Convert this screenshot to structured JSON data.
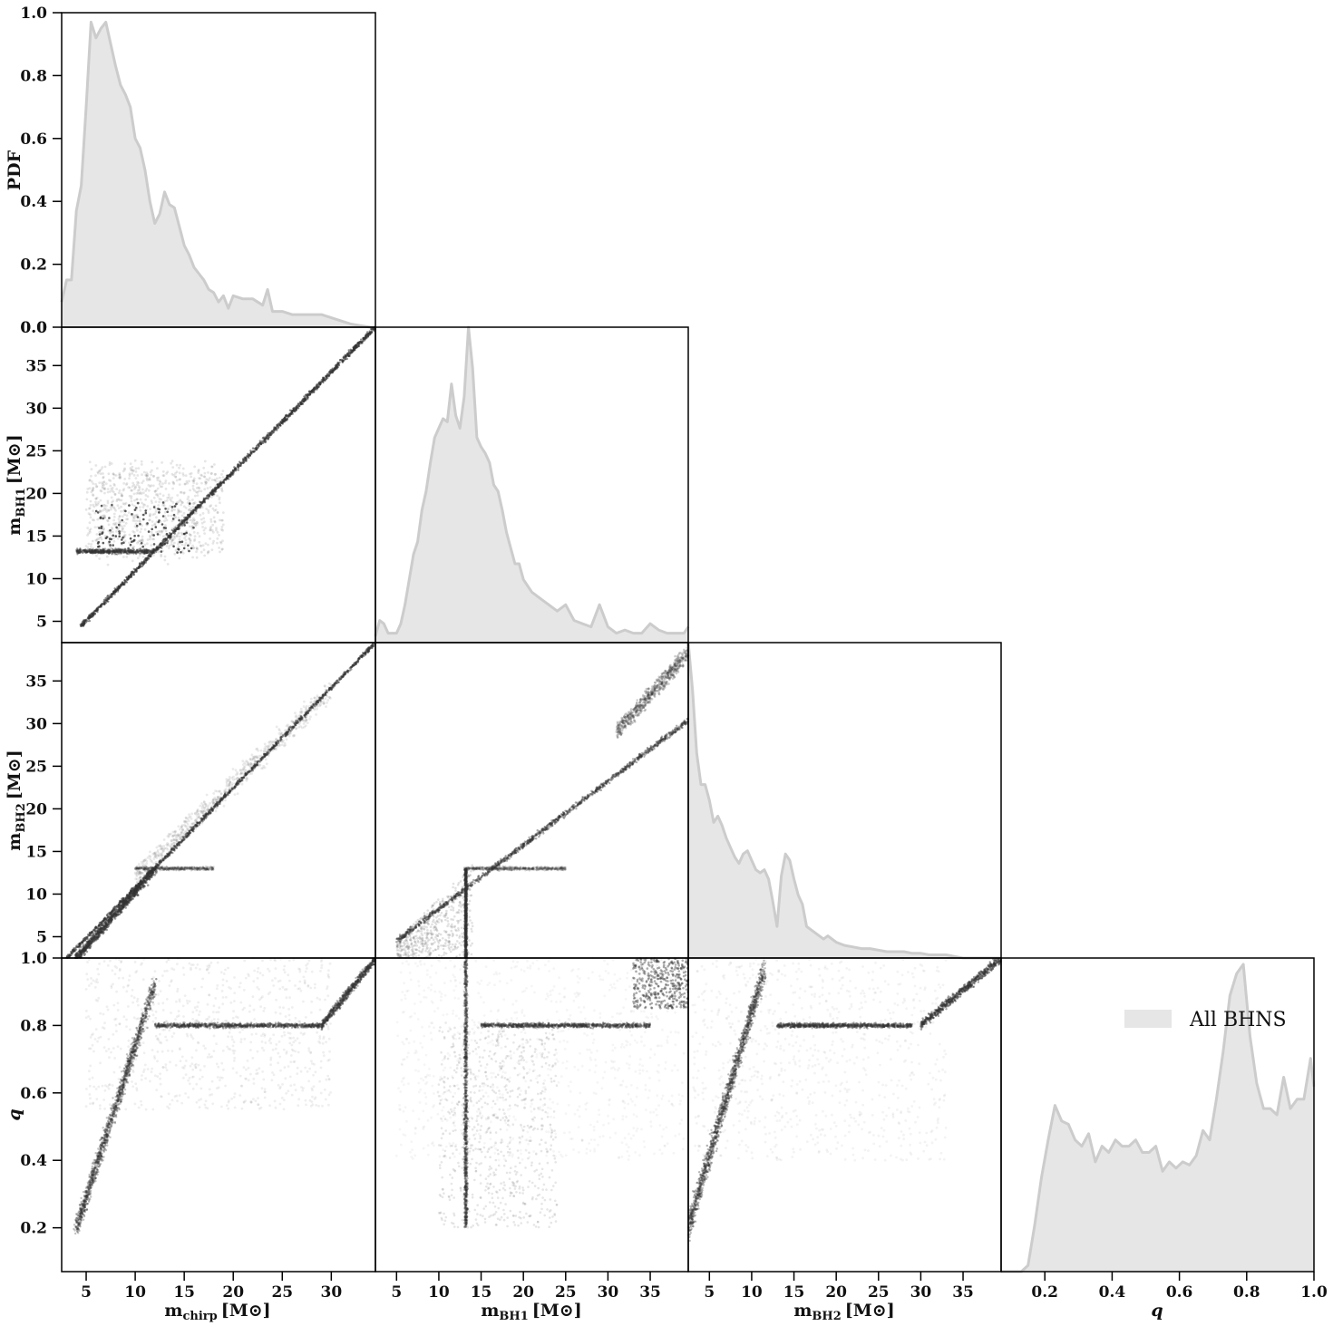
{
  "chart_data": [
    {
      "id": "mchirp-pdf",
      "type": "area",
      "ylabel": "PDF",
      "ylim": [
        0.0,
        1.0
      ],
      "yticks": [
        "0.0",
        "0.2",
        "0.4",
        "0.6",
        "0.8",
        "1.0"
      ],
      "xlim": [
        2.5,
        34.5
      ],
      "x": [
        2.5,
        3,
        3.5,
        4,
        4.5,
        5,
        5.5,
        6,
        6.5,
        7,
        7.5,
        8,
        8.5,
        9,
        9.5,
        10,
        10.5,
        11,
        11.5,
        12,
        12.5,
        13,
        13.5,
        14,
        14.5,
        15,
        15.5,
        16,
        16.5,
        17,
        17.5,
        18,
        18.5,
        19,
        19.5,
        20,
        21,
        22,
        23,
        23.5,
        24,
        25,
        26,
        27,
        28,
        29,
        30,
        31,
        32,
        33,
        34,
        34.5
      ],
      "values": [
        0.08,
        0.15,
        0.15,
        0.37,
        0.45,
        0.7,
        0.97,
        0.92,
        0.95,
        0.97,
        0.9,
        0.83,
        0.77,
        0.74,
        0.7,
        0.6,
        0.57,
        0.5,
        0.4,
        0.33,
        0.36,
        0.43,
        0.39,
        0.38,
        0.32,
        0.26,
        0.23,
        0.19,
        0.17,
        0.15,
        0.12,
        0.11,
        0.08,
        0.1,
        0.06,
        0.1,
        0.09,
        0.09,
        0.07,
        0.12,
        0.05,
        0.05,
        0.04,
        0.04,
        0.04,
        0.04,
        0.03,
        0.02,
        0.01,
        0.005,
        0.0,
        0.0
      ],
      "fill": "#e6e6e6",
      "stroke": "#cccccc"
    },
    {
      "id": "mbh1-pdf",
      "type": "area",
      "xlim": [
        2.5,
        39.5
      ],
      "x": [
        2.5,
        3,
        3.5,
        4,
        4.5,
        5,
        5.5,
        6,
        6.5,
        7,
        7.5,
        8,
        8.5,
        9,
        9.5,
        10,
        10.5,
        11,
        11.5,
        12,
        12.5,
        13,
        13.5,
        14,
        14.5,
        15,
        15.5,
        16,
        16.5,
        17,
        17.5,
        18,
        18.5,
        19,
        19.5,
        20,
        21,
        22,
        23,
        24,
        25,
        26,
        27,
        28,
        29,
        30,
        31,
        32,
        33,
        34,
        35,
        36,
        37,
        38,
        39,
        39.5
      ],
      "values": [
        0.02,
        0.07,
        0.06,
        0.03,
        0.03,
        0.03,
        0.06,
        0.12,
        0.2,
        0.28,
        0.32,
        0.42,
        0.48,
        0.57,
        0.65,
        0.68,
        0.71,
        0.7,
        0.82,
        0.72,
        0.68,
        0.78,
        1.0,
        0.87,
        0.65,
        0.62,
        0.6,
        0.57,
        0.5,
        0.48,
        0.42,
        0.35,
        0.3,
        0.25,
        0.25,
        0.2,
        0.16,
        0.14,
        0.12,
        0.1,
        0.12,
        0.07,
        0.06,
        0.05,
        0.12,
        0.05,
        0.03,
        0.04,
        0.03,
        0.03,
        0.06,
        0.04,
        0.03,
        0.03,
        0.03,
        0.05
      ],
      "fill": "#e6e6e6",
      "stroke": "#cccccc"
    },
    {
      "id": "mbh2-pdf",
      "type": "area",
      "xlim": [
        2.5,
        39.5
      ],
      "x": [
        2.5,
        3,
        3.5,
        4,
        4.5,
        5,
        5.5,
        6,
        6.5,
        7,
        7.5,
        8,
        8.5,
        9,
        9.5,
        10,
        10.5,
        11,
        11.5,
        12,
        12.5,
        13,
        13.5,
        14,
        14.5,
        15,
        15.5,
        16,
        16.5,
        17,
        17.5,
        18,
        18.5,
        19,
        19.5,
        20,
        21,
        22,
        23,
        24,
        25,
        26,
        27,
        28,
        29,
        30,
        31,
        32,
        33,
        34,
        35,
        36,
        37,
        38,
        39,
        39.5
      ],
      "values": [
        1.0,
        0.85,
        0.65,
        0.55,
        0.55,
        0.5,
        0.43,
        0.45,
        0.42,
        0.38,
        0.35,
        0.32,
        0.3,
        0.33,
        0.34,
        0.31,
        0.28,
        0.27,
        0.28,
        0.25,
        0.18,
        0.1,
        0.26,
        0.33,
        0.31,
        0.25,
        0.2,
        0.17,
        0.1,
        0.09,
        0.08,
        0.07,
        0.06,
        0.07,
        0.06,
        0.05,
        0.04,
        0.035,
        0.03,
        0.03,
        0.025,
        0.02,
        0.02,
        0.02,
        0.015,
        0.015,
        0.01,
        0.01,
        0.01,
        0.005,
        0.0,
        0.0,
        0.0,
        0.0,
        0.0,
        0.0
      ],
      "fill": "#e6e6e6",
      "stroke": "#cccccc"
    },
    {
      "id": "q-pdf",
      "type": "area",
      "xlim": [
        0.07,
        1.0
      ],
      "xlabel": "q",
      "xticks": [
        "0.2",
        "0.4",
        "0.6",
        "0.8",
        "1.0"
      ],
      "legend": [
        "All BHNS"
      ],
      "legend_position": "upper-right",
      "x": [
        0.07,
        0.13,
        0.15,
        0.17,
        0.19,
        0.21,
        0.23,
        0.25,
        0.27,
        0.29,
        0.31,
        0.33,
        0.35,
        0.37,
        0.39,
        0.41,
        0.43,
        0.45,
        0.47,
        0.49,
        0.51,
        0.53,
        0.55,
        0.57,
        0.59,
        0.61,
        0.63,
        0.65,
        0.67,
        0.69,
        0.71,
        0.73,
        0.75,
        0.77,
        0.79,
        0.81,
        0.83,
        0.85,
        0.87,
        0.89,
        0.91,
        0.93,
        0.95,
        0.97,
        0.99,
        1.0
      ],
      "values": [
        0.0,
        0.0,
        0.02,
        0.15,
        0.3,
        0.42,
        0.53,
        0.48,
        0.47,
        0.42,
        0.4,
        0.44,
        0.35,
        0.4,
        0.38,
        0.42,
        0.4,
        0.4,
        0.42,
        0.38,
        0.38,
        0.4,
        0.32,
        0.35,
        0.33,
        0.35,
        0.34,
        0.37,
        0.45,
        0.42,
        0.55,
        0.7,
        0.88,
        0.95,
        0.98,
        0.75,
        0.6,
        0.52,
        0.52,
        0.5,
        0.62,
        0.52,
        0.55,
        0.55,
        0.68,
        0.59
      ],
      "fill": "#e6e6e6",
      "stroke": "#cccccc"
    },
    {
      "id": "mbh1-vs-mchirp",
      "type": "scatter",
      "xlim": [
        2.5,
        34.5
      ],
      "ylim": [
        2.5,
        39.5
      ],
      "ylabel": "m_BH1 [M⊙]",
      "yticks": [
        "5",
        "10",
        "15",
        "20",
        "25",
        "30",
        "35"
      ],
      "description_lines": [
        [
          [
            4.5,
            4.5
          ],
          [
            34.5,
            39.5
          ]
        ],
        [
          [
            2.5,
            13.3
          ],
          [
            13.0,
            13.3
          ]
        ]
      ]
    },
    {
      "id": "mbh2-vs-mchirp",
      "type": "scatter",
      "xlim": [
        2.5,
        34.5
      ],
      "ylim": [
        2.5,
        39.5
      ],
      "ylabel": "m_BH2 [M⊙]",
      "yticks": [
        "5",
        "10",
        "15",
        "20",
        "25",
        "30",
        "35"
      ]
    },
    {
      "id": "mbh2-vs-mbh1",
      "type": "scatter",
      "xlim": [
        2.5,
        39.5
      ],
      "ylim": [
        2.5,
        39.5
      ]
    },
    {
      "id": "q-vs-mchirp",
      "type": "scatter",
      "xlim": [
        2.5,
        34.5
      ],
      "ylim": [
        0.07,
        1.0
      ],
      "xlabel": "m_chirp [M⊙]",
      "ylabel": "q",
      "xticks": [
        "5",
        "10",
        "15",
        "20",
        "25",
        "30"
      ],
      "yticks": [
        "0.2",
        "0.4",
        "0.6",
        "0.8",
        "1.0"
      ]
    },
    {
      "id": "q-vs-mbh1",
      "type": "scatter",
      "xlim": [
        2.5,
        39.5
      ],
      "ylim": [
        0.07,
        1.0
      ],
      "xlabel": "m_BH1 [M⊙]",
      "xticks": [
        "5",
        "10",
        "15",
        "20",
        "25",
        "30",
        "35"
      ]
    },
    {
      "id": "q-vs-mbh2",
      "type": "scatter",
      "xlim": [
        2.5,
        39.5
      ],
      "ylim": [
        0.07,
        1.0
      ],
      "xlabel": "m_BH2 [M⊙]",
      "xticks": [
        "5",
        "10",
        "15",
        "20",
        "25",
        "30",
        "35"
      ]
    }
  ],
  "labels": {
    "pdf": "PDF",
    "mchirp_main": "m",
    "mchirp_sub": "chirp",
    "mbh1_main": "m",
    "mbh1_sub": "BH1",
    "mbh2_main": "m",
    "mbh2_sub": "BH2",
    "unit": "[M⊙]",
    "q": "q",
    "legend": "All BHNS"
  },
  "colors": {
    "fill": "#e6e6e6",
    "stroke": "#cccccc",
    "points": "#333333",
    "axis": "#000000"
  }
}
